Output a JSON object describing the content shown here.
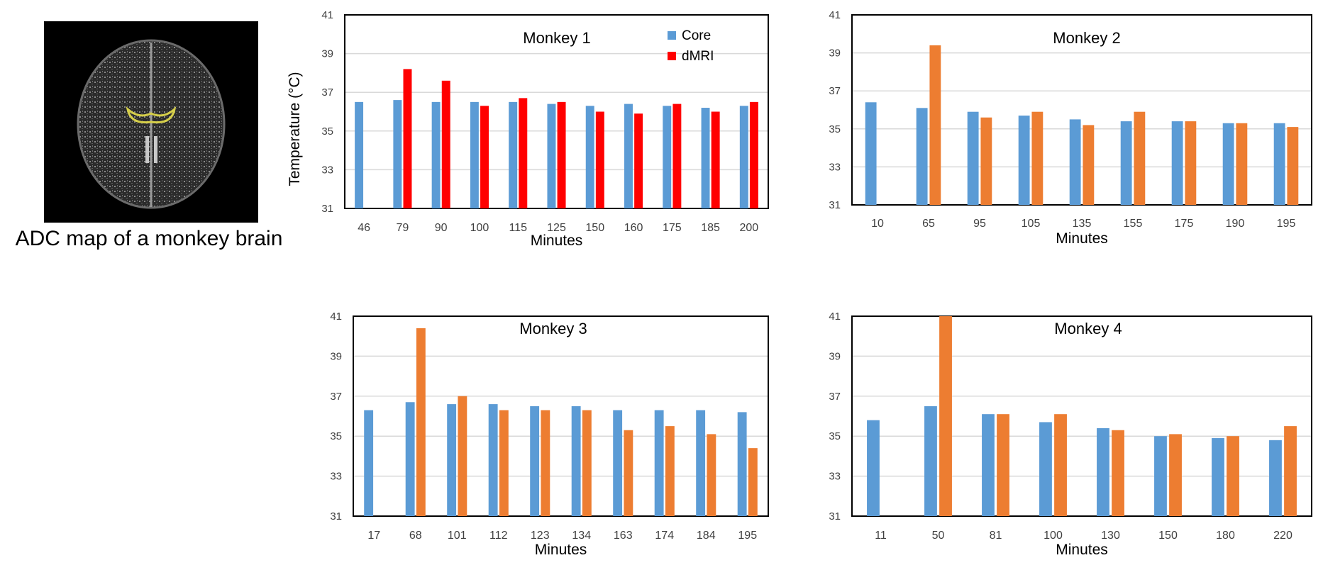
{
  "figure": {
    "image_caption": "ADC map of a monkey brain",
    "y_axis_title": "Temperature (°C)"
  },
  "chart_data": [
    {
      "type": "bar",
      "title": "Monkey 1",
      "xlabel": "Minutes",
      "ylabel": "Temperature (°C)",
      "ylim": [
        31,
        41
      ],
      "yticks": [
        31,
        33,
        35,
        37,
        39,
        41
      ],
      "grid": true,
      "legend": "top-right",
      "categories": [
        "46",
        "79",
        "90",
        "100",
        "115",
        "125",
        "150",
        "160",
        "175",
        "185",
        "200"
      ],
      "series": [
        {
          "name": "Core",
          "color": "#5b9bd5",
          "values": [
            36.5,
            36.6,
            36.5,
            36.5,
            36.5,
            36.4,
            36.3,
            36.4,
            36.3,
            36.2,
            36.3
          ]
        },
        {
          "name": "dMRI",
          "color": "#ff0000",
          "values": [
            null,
            38.2,
            37.6,
            36.3,
            36.7,
            36.5,
            36.0,
            35.9,
            36.4,
            36.0,
            36.5
          ]
        }
      ]
    },
    {
      "type": "bar",
      "title": "Monkey 2",
      "xlabel": "Minutes",
      "ylim": [
        31,
        41
      ],
      "yticks": [
        31,
        33,
        35,
        37,
        39,
        41
      ],
      "grid": true,
      "categories": [
        "10",
        "65",
        "95",
        "105",
        "135",
        "155",
        "175",
        "190",
        "195"
      ],
      "series": [
        {
          "name": "Core",
          "color": "#5b9bd5",
          "values": [
            36.4,
            36.1,
            35.9,
            35.7,
            35.5,
            35.4,
            35.4,
            35.3,
            35.3
          ]
        },
        {
          "name": "dMRI",
          "color": "#ed7d31",
          "values": [
            null,
            39.4,
            35.6,
            35.9,
            35.2,
            35.9,
            35.4,
            35.3,
            35.1
          ]
        }
      ]
    },
    {
      "type": "bar",
      "title": "Monkey 3",
      "xlabel": "Minutes",
      "ylim": [
        31,
        41
      ],
      "yticks": [
        31,
        33,
        35,
        37,
        39,
        41
      ],
      "grid": true,
      "categories": [
        "17",
        "68",
        "101",
        "112",
        "123",
        "134",
        "163",
        "174",
        "184",
        "195"
      ],
      "series": [
        {
          "name": "Core",
          "color": "#5b9bd5",
          "values": [
            36.3,
            36.7,
            36.6,
            36.6,
            36.5,
            36.5,
            36.3,
            36.3,
            36.3,
            36.2
          ]
        },
        {
          "name": "dMRI",
          "color": "#ed7d31",
          "values": [
            null,
            40.4,
            37.0,
            36.3,
            36.3,
            36.3,
            35.3,
            35.5,
            35.1,
            34.4
          ]
        }
      ]
    },
    {
      "type": "bar",
      "title": "Monkey 4",
      "xlabel": "Minutes",
      "ylim": [
        31,
        41
      ],
      "yticks": [
        31,
        33,
        35,
        37,
        39,
        41
      ],
      "grid": true,
      "categories": [
        "11",
        "50",
        "81",
        "100",
        "130",
        "150",
        "180",
        "220"
      ],
      "series": [
        {
          "name": "Core",
          "color": "#5b9bd5",
          "values": [
            35.8,
            36.5,
            36.1,
            35.7,
            35.4,
            35.0,
            34.9,
            34.8
          ]
        },
        {
          "name": "dMRI",
          "color": "#ed7d31",
          "values": [
            null,
            41.0,
            36.1,
            36.1,
            35.3,
            35.1,
            35.0,
            35.5
          ]
        }
      ]
    }
  ]
}
